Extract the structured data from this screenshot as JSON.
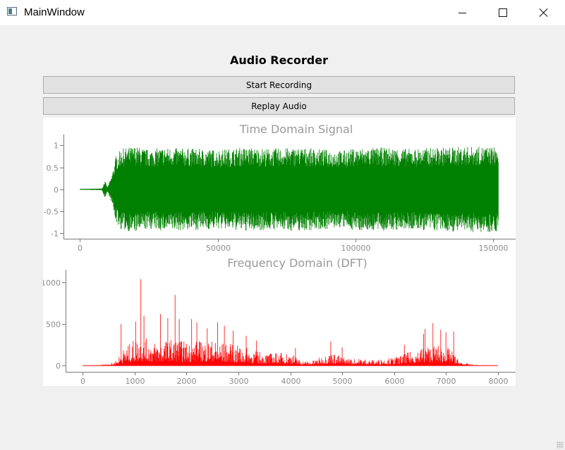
{
  "window": {
    "title": "MainWindow",
    "controls": [
      "minimize",
      "maximize",
      "close"
    ]
  },
  "header": {
    "title": "Audio Recorder"
  },
  "buttons": {
    "start_label": "Start Recording",
    "replay_label": "Replay Audio"
  },
  "chart_data": [
    {
      "type": "line",
      "title": "Time Domain Signal",
      "xlim": [
        -6000,
        158000
      ],
      "ylim": [
        -1.12,
        1.18
      ],
      "x_ticks": [
        0,
        50000,
        100000,
        150000
      ],
      "y_ticks": [
        1,
        0.5,
        0,
        -0.5,
        -1
      ],
      "x_tick_labels": [
        "0",
        "50000",
        "100000",
        "150000"
      ],
      "y_tick_labels": [
        "1",
        "0.5",
        "0",
        "-0.5",
        "-1"
      ],
      "grid": false,
      "series": [
        {
          "color": "#008000",
          "x_start": 0,
          "x_end": 152000,
          "envelope": [
            [
              0,
              0.01
            ],
            [
              8000,
              0.02
            ],
            [
              9000,
              0.2
            ],
            [
              10000,
              0.05
            ],
            [
              11500,
              0.3
            ],
            [
              13000,
              0.75
            ],
            [
              15000,
              0.92
            ],
            [
              20000,
              0.98
            ],
            [
              25000,
              0.9
            ],
            [
              30000,
              0.95
            ],
            [
              40000,
              0.93
            ],
            [
              50000,
              0.9
            ],
            [
              60000,
              0.95
            ],
            [
              70000,
              0.92
            ],
            [
              80000,
              0.95
            ],
            [
              90000,
              0.9
            ],
            [
              95000,
              0.88
            ],
            [
              100000,
              0.93
            ],
            [
              110000,
              0.95
            ],
            [
              120000,
              0.92
            ],
            [
              130000,
              0.95
            ],
            [
              140000,
              0.97
            ],
            [
              150000,
              0.97
            ],
            [
              152000,
              0.95
            ]
          ]
        }
      ]
    },
    {
      "type": "line",
      "title": "Frequency Domain (DFT)",
      "xlim": [
        -330,
        8330
      ],
      "ylim": [
        -75,
        1120
      ],
      "x_ticks": [
        0,
        1000,
        2000,
        3000,
        4000,
        5000,
        6000,
        7000,
        8000
      ],
      "y_ticks": [
        1000,
        500,
        0
      ],
      "x_tick_labels": [
        "0",
        "1000",
        "2000",
        "3000",
        "4000",
        "5000",
        "6000",
        "7000",
        "8000"
      ],
      "y_tick_labels": [
        "1000",
        "500",
        "0"
      ],
      "grid": false,
      "series": [
        {
          "color": "#ff0000",
          "x_start": 0,
          "x_end": 8000,
          "envelope": [
            [
              0,
              0
            ],
            [
              300,
              5
            ],
            [
              450,
              20
            ],
            [
              600,
              40
            ],
            [
              700,
              120
            ],
            [
              800,
              220
            ],
            [
              900,
              260
            ],
            [
              1000,
              330
            ],
            [
              1100,
              350
            ],
            [
              1200,
              330
            ],
            [
              1400,
              290
            ],
            [
              1600,
              310
            ],
            [
              1800,
              330
            ],
            [
              2000,
              290
            ],
            [
              2200,
              300
            ],
            [
              2400,
              320
            ],
            [
              2600,
              290
            ],
            [
              2800,
              270
            ],
            [
              3000,
              240
            ],
            [
              3200,
              210
            ],
            [
              3400,
              170
            ],
            [
              3600,
              150
            ],
            [
              3800,
              160
            ],
            [
              4000,
              155
            ],
            [
              4100,
              120
            ],
            [
              4200,
              65
            ],
            [
              4400,
              50
            ],
            [
              4600,
              110
            ],
            [
              4800,
              160
            ],
            [
              5000,
              110
            ],
            [
              5200,
              80
            ],
            [
              5400,
              90
            ],
            [
              5600,
              70
            ],
            [
              5800,
              85
            ],
            [
              6000,
              100
            ],
            [
              6200,
              140
            ],
            [
              6400,
              190
            ],
            [
              6600,
              240
            ],
            [
              6800,
              250
            ],
            [
              7000,
              230
            ],
            [
              7100,
              190
            ],
            [
              7200,
              100
            ],
            [
              7300,
              40
            ],
            [
              7500,
              15
            ],
            [
              7700,
              3
            ],
            [
              8000,
              0
            ]
          ],
          "peaks": [
            [
              740,
              500
            ],
            [
              1020,
              530
            ],
            [
              1120,
              1040
            ],
            [
              1180,
              600
            ],
            [
              1500,
              620
            ],
            [
              1640,
              570
            ],
            [
              1780,
              850
            ],
            [
              1860,
              560
            ],
            [
              2100,
              560
            ],
            [
              2200,
              520
            ],
            [
              2400,
              450
            ],
            [
              2600,
              520
            ],
            [
              2730,
              480
            ],
            [
              2900,
              420
            ],
            [
              3150,
              360
            ],
            [
              3350,
              300
            ],
            [
              4100,
              210
            ],
            [
              4780,
              290
            ],
            [
              5000,
              220
            ],
            [
              6200,
              250
            ],
            [
              6570,
              380
            ],
            [
              6600,
              440
            ],
            [
              6750,
              510
            ],
            [
              6900,
              430
            ],
            [
              7000,
              400
            ],
            [
              7150,
              410
            ]
          ]
        }
      ]
    }
  ]
}
